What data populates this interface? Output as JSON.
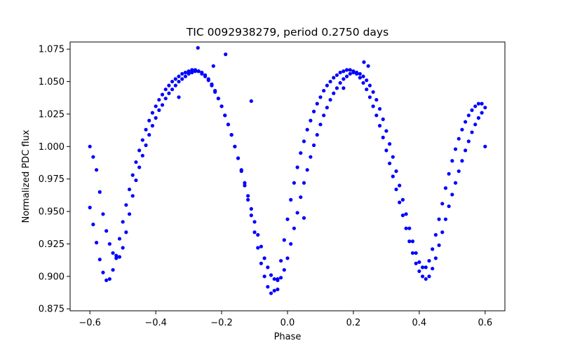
{
  "chart_data": {
    "type": "scatter",
    "title": "TIC 0092938279, period 0.2750 days",
    "xlabel": "Phase",
    "ylabel": "Normalized PDC flux",
    "xlim": [
      -0.66,
      0.66
    ],
    "ylim": [
      0.8735,
      1.0805
    ],
    "xticks": [
      -0.6,
      -0.4,
      -0.2,
      0.0,
      0.2,
      0.4,
      0.6
    ],
    "xtick_labels": [
      "−0.6",
      "−0.4",
      "−0.2",
      "0.0",
      "0.2",
      "0.4",
      "0.6"
    ],
    "yticks": [
      0.875,
      0.9,
      0.925,
      0.95,
      0.975,
      1.0,
      1.025,
      1.05,
      1.075
    ],
    "ytick_labels": [
      "0.875",
      "0.900",
      "0.925",
      "0.950",
      "0.975",
      "1.000",
      "1.025",
      "1.050",
      "1.075"
    ],
    "grid": false,
    "series": [
      {
        "color": "#0000ff",
        "marker": "circle",
        "points": [
          [
            -0.6,
            1.0
          ],
          [
            -0.59,
            0.992
          ],
          [
            -0.58,
            0.982
          ],
          [
            -0.57,
            0.965
          ],
          [
            -0.56,
            0.948
          ],
          [
            -0.55,
            0.935
          ],
          [
            -0.54,
            0.925
          ],
          [
            -0.53,
            0.918
          ],
          [
            -0.52,
            0.914
          ],
          [
            -0.51,
            0.915
          ],
          [
            -0.5,
            0.922
          ],
          [
            -0.49,
            0.934
          ],
          [
            -0.48,
            0.948
          ],
          [
            -0.47,
            0.962
          ],
          [
            -0.46,
            0.974
          ],
          [
            -0.45,
            0.984
          ],
          [
            -0.44,
            0.993
          ],
          [
            -0.43,
            1.001
          ],
          [
            -0.42,
            1.009
          ],
          [
            -0.41,
            1.016
          ],
          [
            -0.4,
            1.022
          ],
          [
            -0.39,
            1.028
          ],
          [
            -0.38,
            1.032
          ],
          [
            -0.37,
            1.037
          ],
          [
            -0.36,
            1.041
          ],
          [
            -0.35,
            1.044
          ],
          [
            -0.34,
            1.047
          ],
          [
            -0.33,
            1.05
          ],
          [
            -0.32,
            1.052
          ],
          [
            -0.31,
            1.054
          ],
          [
            -0.3,
            1.056
          ],
          [
            -0.29,
            1.057
          ],
          [
            -0.28,
            1.058
          ],
          [
            -0.27,
            1.058
          ],
          [
            -0.26,
            1.057
          ],
          [
            -0.25,
            1.055
          ],
          [
            -0.24,
            1.052
          ],
          [
            -0.23,
            1.048
          ],
          [
            -0.22,
            1.043
          ],
          [
            -0.21,
            1.037
          ],
          [
            -0.2,
            1.031
          ],
          [
            -0.19,
            1.024
          ],
          [
            -0.18,
            1.017
          ],
          [
            -0.17,
            1.009
          ],
          [
            -0.16,
            1.0
          ],
          [
            -0.15,
            0.991
          ],
          [
            -0.14,
            0.981
          ],
          [
            -0.13,
            0.97
          ],
          [
            -0.12,
            0.959
          ],
          [
            -0.11,
            0.947
          ],
          [
            -0.1,
            0.934
          ],
          [
            -0.09,
            0.922
          ],
          [
            -0.08,
            0.91
          ],
          [
            -0.07,
            0.9
          ],
          [
            -0.06,
            0.892
          ],
          [
            -0.05,
            0.887
          ],
          [
            -0.04,
            0.889
          ],
          [
            -0.03,
            0.898
          ],
          [
            -0.02,
            0.912
          ],
          [
            -0.01,
            0.928
          ],
          [
            0.0,
            0.944
          ],
          [
            0.01,
            0.959
          ],
          [
            0.02,
            0.972
          ],
          [
            0.03,
            0.984
          ],
          [
            0.04,
            0.995
          ],
          [
            0.05,
            1.004
          ],
          [
            0.06,
            1.013
          ],
          [
            0.07,
            1.02
          ],
          [
            0.08,
            1.027
          ],
          [
            0.09,
            1.033
          ],
          [
            0.1,
            1.038
          ],
          [
            0.11,
            1.043
          ],
          [
            0.12,
            1.047
          ],
          [
            0.13,
            1.05
          ],
          [
            0.14,
            1.053
          ],
          [
            0.15,
            1.055
          ],
          [
            0.16,
            1.057
          ],
          [
            0.17,
            1.058
          ],
          [
            0.18,
            1.059
          ],
          [
            0.19,
            1.059
          ],
          [
            0.2,
            1.058
          ],
          [
            0.21,
            1.056
          ],
          [
            0.22,
            1.053
          ],
          [
            0.23,
            1.049
          ],
          [
            0.24,
            1.044
          ],
          [
            0.25,
            1.038
          ],
          [
            0.26,
            1.031
          ],
          [
            0.27,
            1.024
          ],
          [
            0.28,
            1.016
          ],
          [
            0.29,
            1.007
          ],
          [
            0.3,
            0.997
          ],
          [
            0.31,
            0.987
          ],
          [
            0.32,
            0.977
          ],
          [
            0.33,
            0.967
          ],
          [
            0.34,
            0.957
          ],
          [
            0.35,
            0.947
          ],
          [
            0.36,
            0.937
          ],
          [
            0.37,
            0.927
          ],
          [
            0.38,
            0.918
          ],
          [
            0.39,
            0.91
          ],
          [
            0.4,
            0.904
          ],
          [
            0.41,
            0.9
          ],
          [
            0.42,
            0.898
          ],
          [
            0.43,
            0.9
          ],
          [
            0.44,
            0.906
          ],
          [
            0.45,
            0.914
          ],
          [
            0.46,
            0.924
          ],
          [
            0.47,
            0.934
          ],
          [
            0.48,
            0.944
          ],
          [
            0.49,
            0.954
          ],
          [
            0.5,
            0.963
          ],
          [
            0.51,
            0.972
          ],
          [
            0.52,
            0.981
          ],
          [
            0.53,
            0.989
          ],
          [
            0.54,
            0.997
          ],
          [
            0.55,
            1.004
          ],
          [
            0.56,
            1.011
          ],
          [
            0.57,
            1.017
          ],
          [
            0.58,
            1.022
          ],
          [
            0.59,
            1.026
          ],
          [
            0.6,
            1.03
          ],
          [
            -0.6,
            0.953
          ],
          [
            -0.59,
            0.94
          ],
          [
            -0.58,
            0.926
          ],
          [
            -0.57,
            0.913
          ],
          [
            -0.56,
            0.903
          ],
          [
            -0.55,
            0.897
          ],
          [
            -0.54,
            0.898
          ],
          [
            -0.53,
            0.905
          ],
          [
            -0.52,
            0.916
          ],
          [
            -0.51,
            0.929
          ],
          [
            -0.5,
            0.942
          ],
          [
            -0.49,
            0.955
          ],
          [
            -0.48,
            0.967
          ],
          [
            -0.47,
            0.978
          ],
          [
            -0.46,
            0.988
          ],
          [
            -0.45,
            0.997
          ],
          [
            -0.44,
            1.005
          ],
          [
            -0.43,
            1.013
          ],
          [
            -0.42,
            1.02
          ],
          [
            -0.41,
            1.026
          ],
          [
            -0.4,
            1.031
          ],
          [
            -0.39,
            1.036
          ],
          [
            -0.38,
            1.04
          ],
          [
            -0.37,
            1.044
          ],
          [
            -0.36,
            1.047
          ],
          [
            -0.35,
            1.05
          ],
          [
            -0.34,
            1.052
          ],
          [
            -0.33,
            1.054
          ],
          [
            -0.32,
            1.056
          ],
          [
            -0.31,
            1.057
          ],
          [
            -0.3,
            1.058
          ],
          [
            -0.29,
            1.059
          ],
          [
            -0.28,
            1.059
          ],
          [
            -0.27,
            1.058
          ],
          [
            -0.26,
            1.056
          ],
          [
            -0.25,
            1.054
          ],
          [
            -0.24,
            1.051
          ],
          [
            -0.23,
            1.047
          ],
          [
            -0.22,
            1.042
          ],
          [
            -0.21,
            1.037
          ],
          [
            -0.2,
            1.031
          ],
          [
            -0.19,
            1.024
          ],
          [
            -0.18,
            1.017
          ],
          [
            -0.17,
            1.009
          ],
          [
            -0.16,
            1.0
          ],
          [
            -0.15,
            0.991
          ],
          [
            -0.14,
            0.982
          ],
          [
            -0.13,
            0.972
          ],
          [
            -0.12,
            0.962
          ],
          [
            -0.11,
            0.952
          ],
          [
            -0.1,
            0.942
          ],
          [
            -0.09,
            0.932
          ],
          [
            -0.08,
            0.923
          ],
          [
            -0.07,
            0.914
          ],
          [
            -0.06,
            0.907
          ],
          [
            -0.05,
            0.901
          ],
          [
            -0.04,
            0.898
          ],
          [
            -0.03,
            0.897
          ],
          [
            -0.02,
            0.899
          ],
          [
            -0.01,
            0.905
          ],
          [
            0.0,
            0.914
          ],
          [
            0.01,
            0.925
          ],
          [
            0.02,
            0.937
          ],
          [
            0.03,
            0.949
          ],
          [
            0.04,
            0.961
          ],
          [
            0.05,
            0.972
          ],
          [
            0.06,
            0.982
          ],
          [
            0.07,
            0.992
          ],
          [
            0.08,
            1.001
          ],
          [
            0.09,
            1.009
          ],
          [
            0.1,
            1.017
          ],
          [
            0.11,
            1.024
          ],
          [
            0.12,
            1.03
          ],
          [
            0.13,
            1.036
          ],
          [
            0.14,
            1.041
          ],
          [
            0.15,
            1.045
          ],
          [
            0.16,
            1.049
          ],
          [
            0.17,
            1.052
          ],
          [
            0.18,
            1.054
          ],
          [
            0.19,
            1.056
          ],
          [
            0.2,
            1.057
          ],
          [
            0.21,
            1.057
          ],
          [
            0.22,
            1.056
          ],
          [
            0.23,
            1.054
          ],
          [
            0.24,
            1.051
          ],
          [
            0.25,
            1.047
          ],
          [
            0.26,
            1.042
          ],
          [
            0.27,
            1.036
          ],
          [
            0.28,
            1.029
          ],
          [
            0.29,
            1.021
          ],
          [
            0.3,
            1.012
          ],
          [
            0.31,
            1.002
          ],
          [
            0.32,
            0.992
          ],
          [
            0.33,
            0.981
          ],
          [
            0.34,
            0.97
          ],
          [
            0.35,
            0.959
          ],
          [
            0.36,
            0.948
          ],
          [
            0.37,
            0.937
          ],
          [
            0.38,
            0.927
          ],
          [
            0.39,
            0.918
          ],
          [
            0.4,
            0.911
          ],
          [
            0.41,
            0.907
          ],
          [
            0.42,
            0.907
          ],
          [
            0.43,
            0.912
          ],
          [
            0.44,
            0.921
          ],
          [
            0.45,
            0.932
          ],
          [
            0.46,
            0.944
          ],
          [
            0.47,
            0.956
          ],
          [
            0.48,
            0.968
          ],
          [
            0.49,
            0.979
          ],
          [
            0.5,
            0.989
          ],
          [
            0.51,
            0.998
          ],
          [
            0.52,
            1.006
          ],
          [
            0.53,
            1.013
          ],
          [
            0.54,
            1.019
          ],
          [
            0.55,
            1.024
          ],
          [
            0.56,
            1.028
          ],
          [
            0.57,
            1.031
          ],
          [
            0.58,
            1.033
          ],
          [
            0.59,
            1.033
          ],
          [
            0.6,
            1.0
          ],
          [
            -0.272,
            1.076
          ],
          [
            -0.188,
            1.071
          ],
          [
            -0.11,
            1.035
          ],
          [
            0.232,
            1.065
          ],
          [
            0.245,
            1.062
          ],
          [
            -0.225,
            1.062
          ],
          [
            -0.33,
            1.038
          ],
          [
            0.17,
            1.045
          ],
          [
            0.05,
            0.945
          ],
          [
            -0.03,
            0.89
          ]
        ]
      }
    ]
  }
}
